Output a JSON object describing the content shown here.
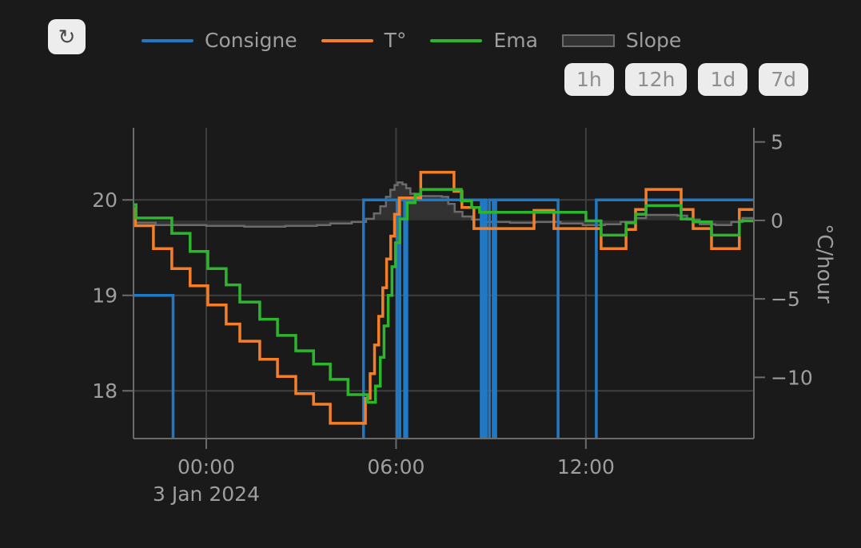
{
  "toolbar": {
    "refresh_icon": "↻"
  },
  "legend": {
    "items": [
      {
        "id": "consigne",
        "label": "Consigne",
        "type": "line",
        "color": "#2178c4"
      },
      {
        "id": "temperature",
        "label": "T°",
        "type": "line",
        "color": "#f57f28"
      },
      {
        "id": "ema",
        "label": "Ema",
        "type": "line",
        "color": "#2db52d"
      },
      {
        "id": "slope",
        "label": "Slope",
        "type": "area",
        "color": "#6b6b6b",
        "fill": "#323232"
      }
    ]
  },
  "range_buttons": [
    {
      "label": "1h"
    },
    {
      "label": "12h"
    },
    {
      "label": "1d"
    },
    {
      "label": "7d"
    }
  ],
  "chart_data": {
    "type": "line",
    "grid": true,
    "legend_position": "top",
    "x_axis": {
      "unit": "hours",
      "range": [
        -2.3,
        17.31
      ],
      "ticks": [
        {
          "value": 0,
          "label": "00:00"
        },
        {
          "value": 6,
          "label": "06:00"
        },
        {
          "value": 12,
          "label": "12:00"
        }
      ],
      "date_label": "3 Jan 2024"
    },
    "y_axis_left": {
      "label": "",
      "range": [
        17.5,
        20.755
      ],
      "ticks": [
        {
          "value": 20,
          "label": "20"
        },
        {
          "value": 19,
          "label": "19"
        },
        {
          "value": 18,
          "label": "18"
        }
      ]
    },
    "y_axis_right": {
      "label": "°C/hour",
      "range": [
        -13.9,
        5.9
      ],
      "ticks": [
        {
          "value": 5,
          "label": "5"
        },
        {
          "value": 0,
          "label": "0"
        },
        {
          "value": -5,
          "label": "−5"
        },
        {
          "value": -10,
          "label": "−10"
        }
      ]
    },
    "series": [
      {
        "id": "consigne",
        "name": "Consigne",
        "axis": "left",
        "type": "line",
        "step": true,
        "color": "#2178c4",
        "points": [
          [
            -2.3,
            19
          ],
          [
            -1.05,
            17
          ],
          [
            4.97,
            20
          ],
          [
            6.03,
            17
          ],
          [
            6.12,
            20
          ],
          [
            6.27,
            17
          ],
          [
            6.34,
            20
          ],
          [
            8.69,
            17
          ],
          [
            8.77,
            20
          ],
          [
            8.85,
            17
          ],
          [
            8.95,
            20
          ],
          [
            9.07,
            17
          ],
          [
            9.15,
            20
          ],
          [
            11.12,
            17
          ],
          [
            12.33,
            20
          ],
          [
            17.31,
            20
          ]
        ]
      },
      {
        "id": "temperature",
        "name": "T°",
        "axis": "left",
        "type": "line",
        "step": true,
        "color": "#f57f28",
        "points": [
          [
            -2.3,
            19.91
          ],
          [
            -2.24,
            19.73
          ],
          [
            -1.67,
            19.49
          ],
          [
            -1.09,
            19.28
          ],
          [
            -0.51,
            19.1
          ],
          [
            0.05,
            18.9
          ],
          [
            0.63,
            18.7
          ],
          [
            1.06,
            18.52
          ],
          [
            1.69,
            18.33
          ],
          [
            2.25,
            18.15
          ],
          [
            2.83,
            17.97
          ],
          [
            3.39,
            17.86
          ],
          [
            3.92,
            17.66
          ],
          [
            5.03,
            17.92
          ],
          [
            5.18,
            18.18
          ],
          [
            5.32,
            18.48
          ],
          [
            5.45,
            18.78
          ],
          [
            5.58,
            19.08
          ],
          [
            5.7,
            19.38
          ],
          [
            5.83,
            19.62
          ],
          [
            5.95,
            19.85
          ],
          [
            6.1,
            20.02
          ],
          [
            6.78,
            20.29
          ],
          [
            7.83,
            20.09
          ],
          [
            8.08,
            19.92
          ],
          [
            8.46,
            19.7
          ],
          [
            10.36,
            19.89
          ],
          [
            10.99,
            19.7
          ],
          [
            12.48,
            19.49
          ],
          [
            13.27,
            19.69
          ],
          [
            13.57,
            19.9
          ],
          [
            13.9,
            20.11
          ],
          [
            15.01,
            19.9
          ],
          [
            15.39,
            19.7
          ],
          [
            15.97,
            19.49
          ],
          [
            16.85,
            19.9
          ],
          [
            17.31,
            19.9
          ]
        ]
      },
      {
        "id": "ema",
        "name": "Ema",
        "axis": "left",
        "type": "line",
        "step": true,
        "color": "#2db52d",
        "points": [
          [
            -2.3,
            19.95
          ],
          [
            -2.22,
            19.81
          ],
          [
            -1.09,
            19.65
          ],
          [
            -0.51,
            19.46
          ],
          [
            0.05,
            19.28
          ],
          [
            0.63,
            19.11
          ],
          [
            1.06,
            18.93
          ],
          [
            1.69,
            18.75
          ],
          [
            2.25,
            18.58
          ],
          [
            2.83,
            18.42
          ],
          [
            3.39,
            18.28
          ],
          [
            3.92,
            18.12
          ],
          [
            4.48,
            17.96
          ],
          [
            5.1,
            17.88
          ],
          [
            5.35,
            18.05
          ],
          [
            5.5,
            18.35
          ],
          [
            5.62,
            18.68
          ],
          [
            5.75,
            19.0
          ],
          [
            5.87,
            19.3
          ],
          [
            5.98,
            19.55
          ],
          [
            6.12,
            19.8
          ],
          [
            6.35,
            19.97
          ],
          [
            6.6,
            20.06
          ],
          [
            6.78,
            20.11
          ],
          [
            8.06,
            19.99
          ],
          [
            8.39,
            19.92
          ],
          [
            8.64,
            19.87
          ],
          [
            12.0,
            19.78
          ],
          [
            12.48,
            19.63
          ],
          [
            13.27,
            19.76
          ],
          [
            13.57,
            19.85
          ],
          [
            13.9,
            19.94
          ],
          [
            15.01,
            19.8
          ],
          [
            15.39,
            19.77
          ],
          [
            15.97,
            19.63
          ],
          [
            16.85,
            19.78
          ],
          [
            17.31,
            19.78
          ]
        ]
      },
      {
        "id": "slope",
        "name": "Slope",
        "axis": "right",
        "type": "area",
        "step": true,
        "color": "#6b6b6b",
        "fill": "#323232",
        "baseline": 0,
        "points": [
          [
            -2.3,
            -0.15
          ],
          [
            -1.6,
            -0.3
          ],
          [
            0.0,
            -0.35
          ],
          [
            1.2,
            -0.4
          ],
          [
            2.5,
            -0.35
          ],
          [
            3.5,
            -0.3
          ],
          [
            3.92,
            -0.2
          ],
          [
            4.6,
            -0.1
          ],
          [
            5.05,
            0.1
          ],
          [
            5.3,
            0.45
          ],
          [
            5.5,
            0.9
          ],
          [
            5.68,
            1.5
          ],
          [
            5.82,
            1.95
          ],
          [
            5.95,
            2.25
          ],
          [
            6.05,
            2.42
          ],
          [
            6.2,
            2.3
          ],
          [
            6.32,
            2.05
          ],
          [
            6.45,
            1.7
          ],
          [
            6.6,
            1.55
          ],
          [
            7.45,
            1.5
          ],
          [
            7.65,
            1.05
          ],
          [
            7.85,
            0.55
          ],
          [
            8.1,
            0.25
          ],
          [
            8.4,
            0.05
          ],
          [
            8.8,
            -0.1
          ],
          [
            9.6,
            -0.15
          ],
          [
            10.4,
            -0.1
          ],
          [
            11.2,
            -0.2
          ],
          [
            11.9,
            -0.3
          ],
          [
            12.6,
            -0.25
          ],
          [
            13.1,
            -0.1
          ],
          [
            13.55,
            0.15
          ],
          [
            13.9,
            0.35
          ],
          [
            14.9,
            0.3
          ],
          [
            15.2,
            0.05
          ],
          [
            15.6,
            -0.25
          ],
          [
            16.1,
            -0.3
          ],
          [
            16.6,
            -0.1
          ],
          [
            16.95,
            0.15
          ],
          [
            17.31,
            0.2
          ]
        ]
      }
    ]
  },
  "theme": {
    "background": "#1a1a1a",
    "grid_color": "#3f3f3f",
    "axis_color": "#6b6b6b",
    "tick_text_color": "#9e9e9e",
    "legend_text_color": "#9e9e9e",
    "button_bg": "#ececec",
    "button_text": "#8f8f8f"
  }
}
